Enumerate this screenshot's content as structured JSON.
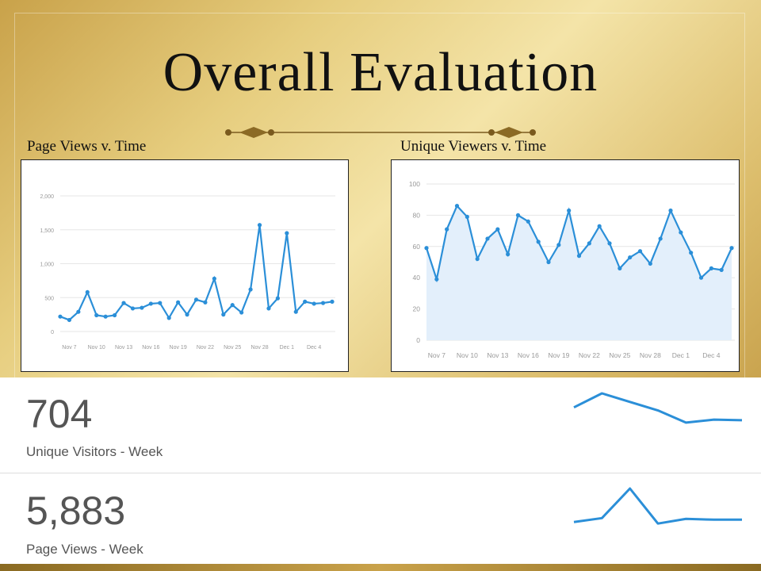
{
  "slide": {
    "title": "Overall Evaluation"
  },
  "labels": {
    "left": "Page Views v. Time",
    "right": "Unique Viewers v. Time"
  },
  "chart_data": [
    {
      "type": "line",
      "ylim": [
        0,
        2000
      ],
      "yticks": [
        "0",
        "500",
        "1,000",
        "1,500",
        "2,000"
      ],
      "xtick_labels": [
        "Nov 7",
        "Nov 10",
        "Nov 13",
        "Nov 16",
        "Nov 19",
        "Nov 22",
        "Nov 25",
        "Nov 28",
        "Dec 1",
        "Dec 4"
      ],
      "x": [
        "Nov 6",
        "Nov 7",
        "Nov 8",
        "Nov 9",
        "Nov 10",
        "Nov 11",
        "Nov 12",
        "Nov 13",
        "Nov 14",
        "Nov 15",
        "Nov 16",
        "Nov 17",
        "Nov 18",
        "Nov 19",
        "Nov 20",
        "Nov 21",
        "Nov 22",
        "Nov 23",
        "Nov 24",
        "Nov 25",
        "Nov 26",
        "Nov 27",
        "Nov 28",
        "Nov 29",
        "Nov 30",
        "Dec 1",
        "Dec 2",
        "Dec 3",
        "Dec 4",
        "Dec 5",
        "Dec 6"
      ],
      "values": [
        220,
        170,
        290,
        580,
        240,
        220,
        240,
        420,
        340,
        350,
        410,
        420,
        200,
        430,
        250,
        470,
        430,
        780,
        250,
        390,
        280,
        620,
        1570,
        340,
        490,
        1450,
        290,
        440,
        410,
        420,
        440
      ],
      "color": "#2b8fd8",
      "grid": true
    },
    {
      "type": "line",
      "ylim": [
        0,
        100
      ],
      "yticks": [
        "0",
        "20",
        "40",
        "60",
        "80",
        "100"
      ],
      "xtick_labels": [
        "Nov 7",
        "Nov 10",
        "Nov 13",
        "Nov 16",
        "Nov 19",
        "Nov 22",
        "Nov 25",
        "Nov 28",
        "Dec 1",
        "Dec 4"
      ],
      "x": [
        "Nov 6",
        "Nov 7",
        "Nov 8",
        "Nov 9",
        "Nov 10",
        "Nov 11",
        "Nov 12",
        "Nov 13",
        "Nov 14",
        "Nov 15",
        "Nov 16",
        "Nov 17",
        "Nov 18",
        "Nov 19",
        "Nov 20",
        "Nov 21",
        "Nov 22",
        "Nov 23",
        "Nov 24",
        "Nov 25",
        "Nov 26",
        "Nov 27",
        "Nov 28",
        "Nov 29",
        "Nov 30",
        "Dec 1",
        "Dec 2",
        "Dec 3",
        "Dec 4",
        "Dec 5",
        "Dec 6"
      ],
      "values": [
        59,
        39,
        71,
        86,
        79,
        52,
        65,
        71,
        55,
        80,
        76,
        63,
        50,
        61,
        83,
        54,
        62,
        73,
        62,
        46,
        53,
        57,
        49,
        65,
        83,
        69,
        56,
        40,
        46,
        45,
        59
      ],
      "color": "#2b8fd8",
      "fill": "#e3effb",
      "grid": true
    },
    {
      "type": "line",
      "values": [
        55,
        78,
        64,
        50,
        30,
        35,
        34
      ],
      "color": "#2b8fd8"
    },
    {
      "type": "line",
      "values": [
        12,
        17,
        55,
        10,
        16,
        15,
        15
      ],
      "color": "#2b8fd8"
    }
  ],
  "stats": [
    {
      "value": "704",
      "label": "Unique Visitors - Week"
    },
    {
      "value": "5,883",
      "label": "Page Views - Week"
    }
  ]
}
